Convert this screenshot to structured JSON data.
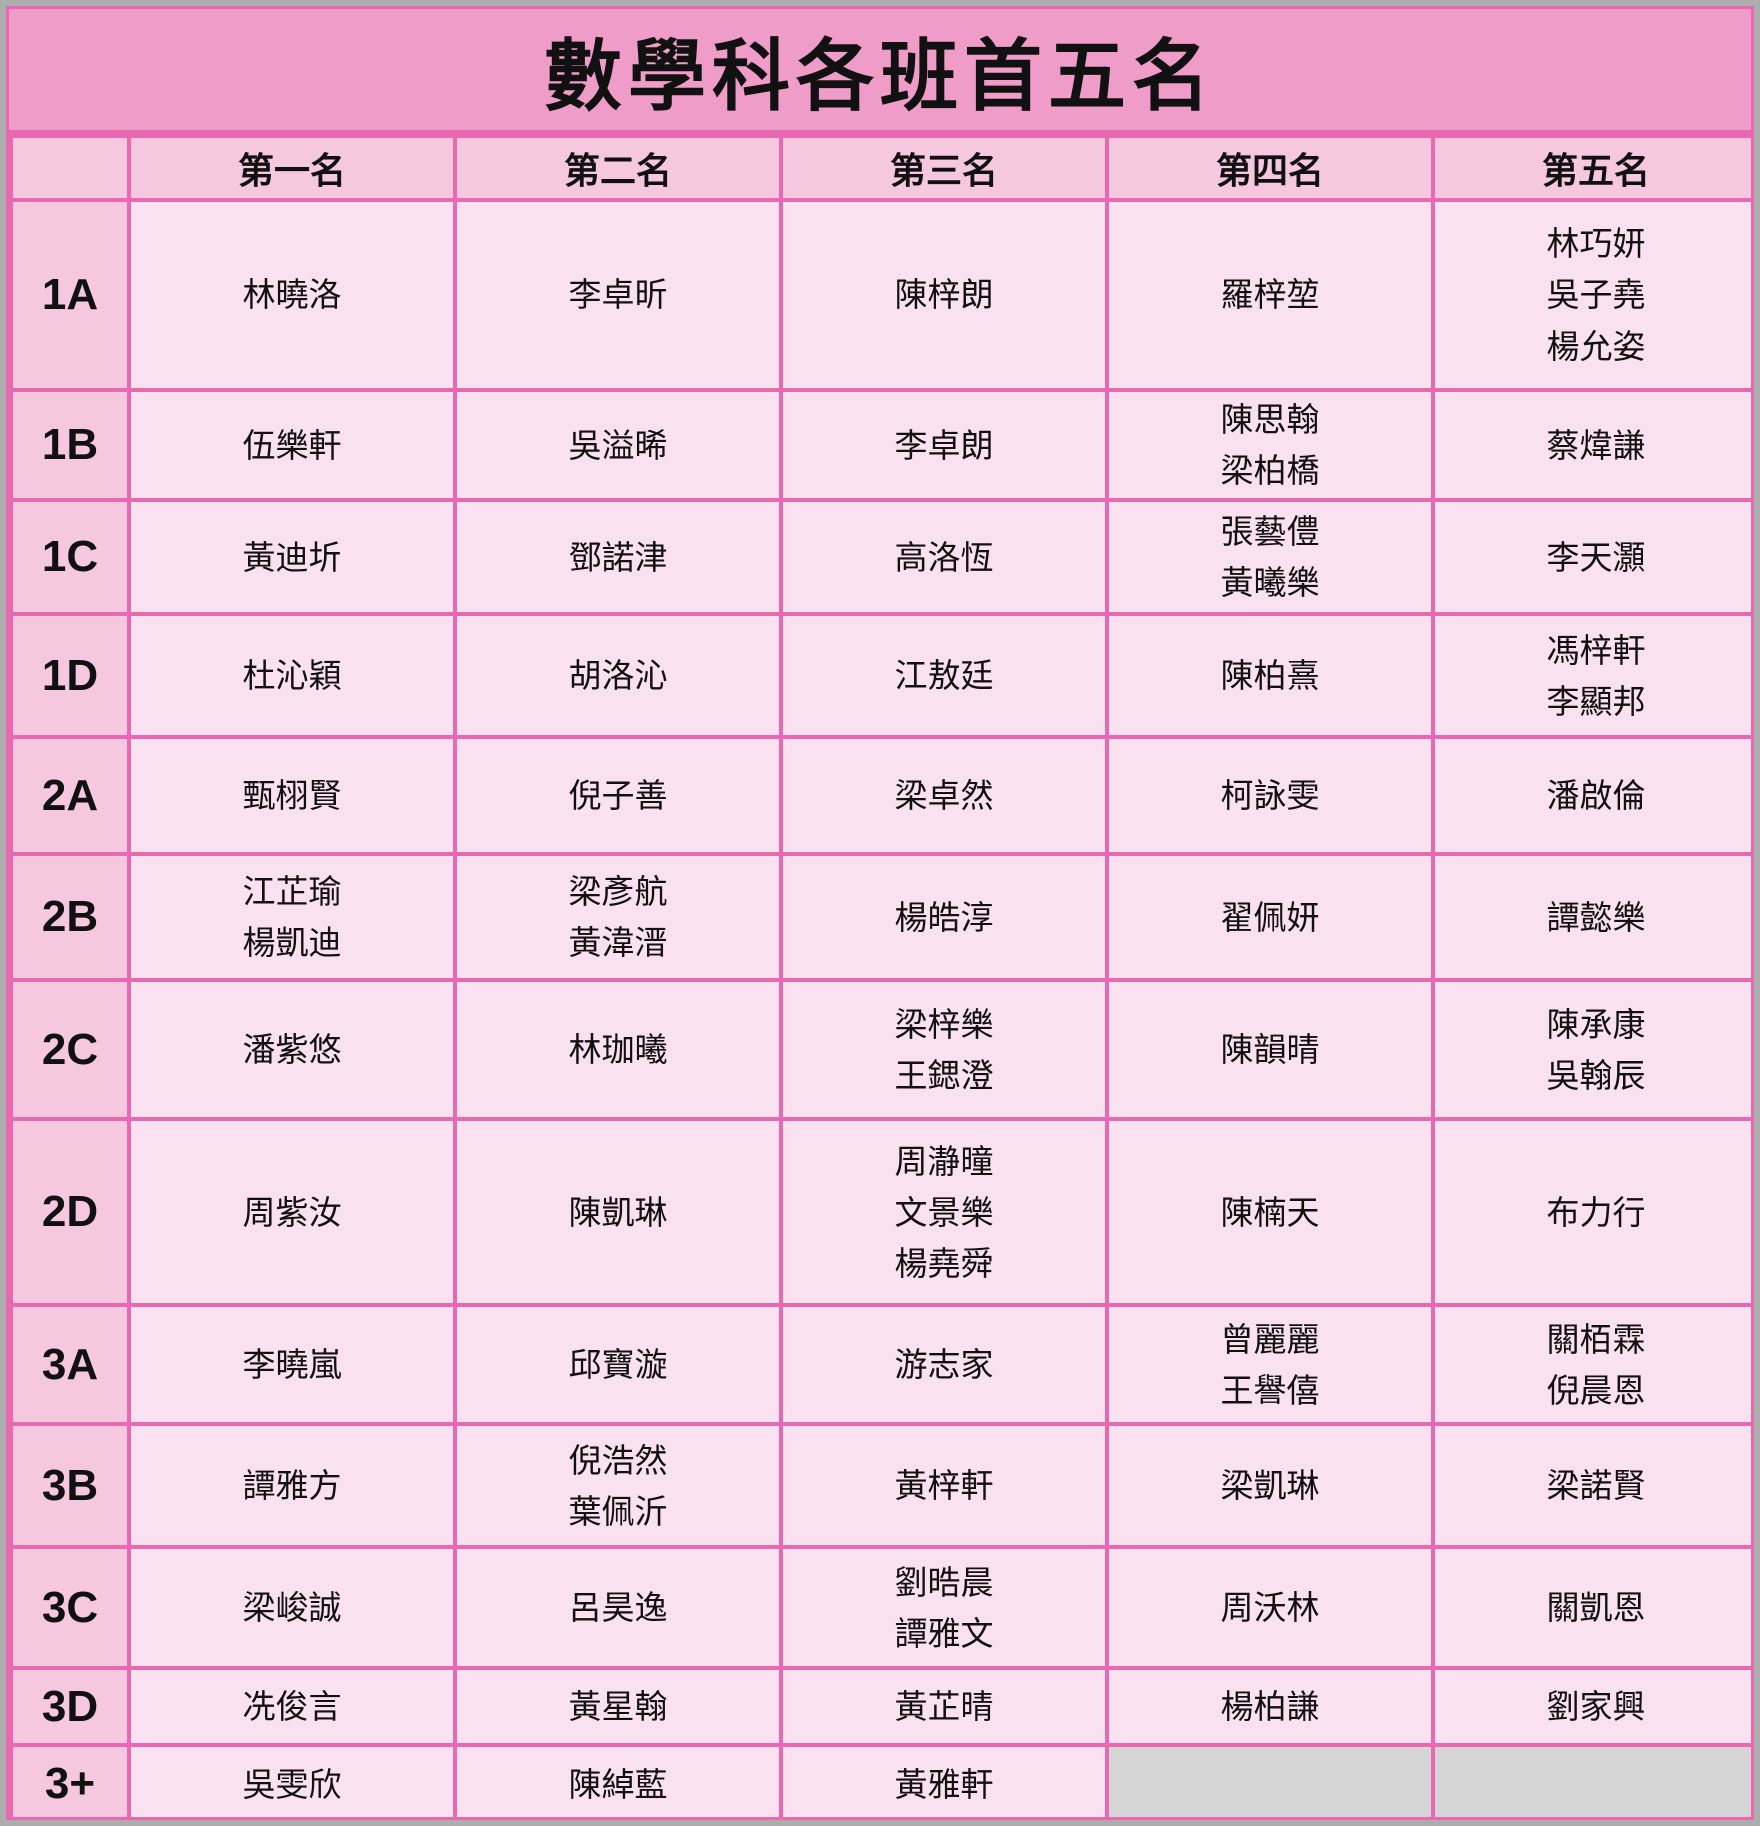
{
  "title": "數學科各班首五名",
  "columns": [
    "第一名",
    "第二名",
    "第三名",
    "第四名",
    "第五名"
  ],
  "colors": {
    "title_background": "#f09cc8",
    "header_background": "#f5c8e0",
    "cell_background": "#fae1ef",
    "grid_border": "#e868b2",
    "outer_border": "#adadad",
    "empty_cell_background": "#d5d5d5",
    "text": "#111111"
  },
  "rows": [
    {
      "label": "1A",
      "cells": [
        [
          "林曉洛"
        ],
        [
          "李卓昕"
        ],
        [
          "陳梓朗"
        ],
        [
          "羅梓堃"
        ],
        [
          "林巧妍",
          "吳子堯",
          "楊允姿"
        ]
      ]
    },
    {
      "label": "1B",
      "cells": [
        [
          "伍樂軒"
        ],
        [
          "吳溢晞"
        ],
        [
          "李卓朗"
        ],
        [
          "陳思翰",
          "梁柏橋"
        ],
        [
          "蔡煒謙"
        ]
      ]
    },
    {
      "label": "1C",
      "cells": [
        [
          "黃迪圻"
        ],
        [
          "鄧諾津"
        ],
        [
          "高洛恆"
        ],
        [
          "張藝僼",
          "黃曦樂"
        ],
        [
          "李天灝"
        ]
      ]
    },
    {
      "label": "1D",
      "cells": [
        [
          "杜沁穎"
        ],
        [
          "胡洛沁"
        ],
        [
          "江敖廷"
        ],
        [
          "陳柏熹"
        ],
        [
          "馮梓軒",
          "李顯邦"
        ]
      ]
    },
    {
      "label": "2A",
      "cells": [
        [
          "甄栩賢"
        ],
        [
          "倪子善"
        ],
        [
          "梁卓然"
        ],
        [
          "柯詠雯"
        ],
        [
          "潘啟倫"
        ]
      ]
    },
    {
      "label": "2B",
      "cells": [
        [
          "江芷瑜",
          "楊凱迪"
        ],
        [
          "梁彥航",
          "黃湋溍"
        ],
        [
          "楊皓淳"
        ],
        [
          "翟佩妍"
        ],
        [
          "譚懿樂"
        ]
      ]
    },
    {
      "label": "2C",
      "cells": [
        [
          "潘紫悠"
        ],
        [
          "林珈曦"
        ],
        [
          "梁梓樂",
          "王鍶澄"
        ],
        [
          "陳韻晴"
        ],
        [
          "陳承康",
          "吳翰辰"
        ]
      ]
    },
    {
      "label": "2D",
      "cells": [
        [
          "周紫汝"
        ],
        [
          "陳凱琳"
        ],
        [
          "周瀞曈",
          "文景樂",
          "楊堯舜"
        ],
        [
          "陳楠天"
        ],
        [
          "布力行"
        ]
      ]
    },
    {
      "label": "3A",
      "cells": [
        [
          "李曉嵐"
        ],
        [
          "邱寶漩"
        ],
        [
          "游志家"
        ],
        [
          "曾麗麗",
          "王譽僖"
        ],
        [
          "關栢霖",
          "倪晨恩"
        ]
      ]
    },
    {
      "label": "3B",
      "cells": [
        [
          "譚雅方"
        ],
        [
          "倪浩然",
          "葉佩沂"
        ],
        [
          "黃梓軒"
        ],
        [
          "梁凱琳"
        ],
        [
          "梁諾賢"
        ]
      ]
    },
    {
      "label": "3C",
      "cells": [
        [
          "梁峻誠"
        ],
        [
          "呂昊逸"
        ],
        [
          "劉晧晨",
          "譚雅文"
        ],
        [
          "周沃林"
        ],
        [
          "關凱恩"
        ]
      ]
    },
    {
      "label": "3D",
      "cells": [
        [
          "冼俊言"
        ],
        [
          "黃星翰"
        ],
        [
          "黃芷晴"
        ],
        [
          "楊柏謙"
        ],
        [
          "劉家興"
        ]
      ]
    },
    {
      "label": "3+",
      "cells": [
        [
          "吳雯欣"
        ],
        [
          "陳綽藍"
        ],
        [
          "黃雅軒"
        ],
        null,
        null
      ]
    }
  ]
}
